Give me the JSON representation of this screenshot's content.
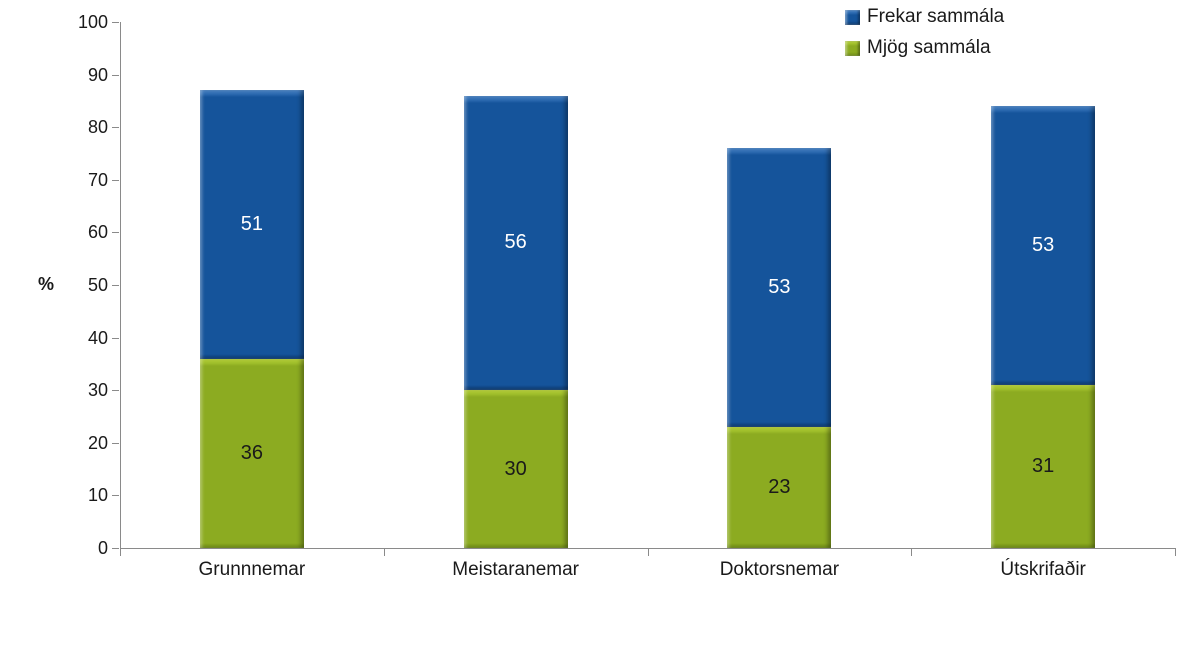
{
  "chart_data": {
    "type": "bar",
    "stacked": true,
    "title": "",
    "xlabel": "",
    "ylabel": "%",
    "ylim": [
      0,
      100
    ],
    "yticks": [
      0,
      10,
      20,
      30,
      40,
      50,
      60,
      70,
      80,
      90,
      100
    ],
    "grid": false,
    "legend_position": "top-right",
    "categories": [
      "Grunnnemar",
      "Meistaranemar",
      "Doktorsnemar",
      "Útskrifaðir"
    ],
    "series": [
      {
        "name": "Mjög sammála",
        "values": [
          36,
          30,
          23,
          31
        ],
        "color": "#8CAB21",
        "color_light": "#BCD93A",
        "color_dark": "#6F8C15",
        "value_label_color": "#1a1a1a"
      },
      {
        "name": "Frekar sammála",
        "values": [
          51,
          56,
          53,
          53
        ],
        "color": "#15549B",
        "color_light": "#4C88CC",
        "color_dark": "#0D3B70",
        "value_label_color": "#ffffff"
      }
    ],
    "legend": [
      {
        "label": "Frekar sammála",
        "series": "Frekar sammála"
      },
      {
        "label": "Mjög sammála",
        "series": "Mjög sammála"
      }
    ],
    "axis_color": "#8a8a8a",
    "text_color": "#1a1a1a"
  }
}
